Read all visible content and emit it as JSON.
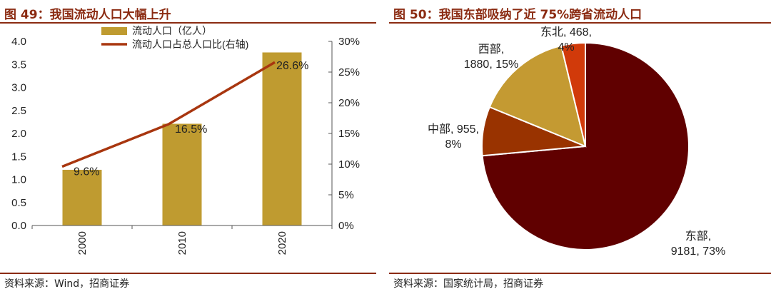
{
  "left": {
    "title": "图 49：我国流动人口大幅上升",
    "source": "资料来源：Wind，招商证券"
  },
  "right": {
    "title": "图 50：我国东部吸纳了近 75%跨省流动人口",
    "source": "资料来源：国家统计局，招商证券"
  },
  "colors": {
    "rule": "#8b2b12",
    "bar": "#bf9b30",
    "line": "#a8360f"
  },
  "chart_data": [
    {
      "type": "bar",
      "categories": [
        "2000",
        "2010",
        "2020"
      ],
      "series": [
        {
          "name": "流动人口（亿人）",
          "type": "bar",
          "axis": "left",
          "values": [
            1.21,
            2.21,
            3.76
          ],
          "color": "#bf9b30"
        },
        {
          "name": "流动人口占总人口比(右轴)",
          "type": "line",
          "axis": "right",
          "values": [
            9.6,
            16.5,
            26.6
          ],
          "labels": [
            "9.6%",
            "16.5%",
            "26.6%"
          ],
          "color": "#a8360f"
        }
      ],
      "ylim": [
        0,
        4.0
      ],
      "yticks": [
        "0.0",
        "0.5",
        "1.0",
        "1.5",
        "2.0",
        "2.5",
        "3.0",
        "3.5",
        "4.0"
      ],
      "y2lim": [
        0,
        30
      ],
      "y2ticks": [
        "0%",
        "5%",
        "10%",
        "15%",
        "20%",
        "25%",
        "30%"
      ],
      "legend": "top"
    },
    {
      "type": "pie",
      "slices": [
        {
          "name": "东部",
          "value": 9181,
          "percent": "73%",
          "color": "#600000",
          "label_lines": [
            "东部,",
            "9181, 73%"
          ]
        },
        {
          "name": "中部",
          "value": 955,
          "percent": "8%",
          "color": "#993300",
          "label_lines": [
            "中部, 955,",
            "8%"
          ]
        },
        {
          "name": "西部",
          "value": 1880,
          "percent": "15%",
          "color": "#c49a32",
          "label_lines": [
            "西部,",
            "1880, 15%"
          ]
        },
        {
          "name": "东北",
          "value": 468,
          "percent": "4%",
          "color": "#d13a0a",
          "label_lines": [
            "东北, 468,",
            "4%"
          ]
        }
      ]
    }
  ]
}
